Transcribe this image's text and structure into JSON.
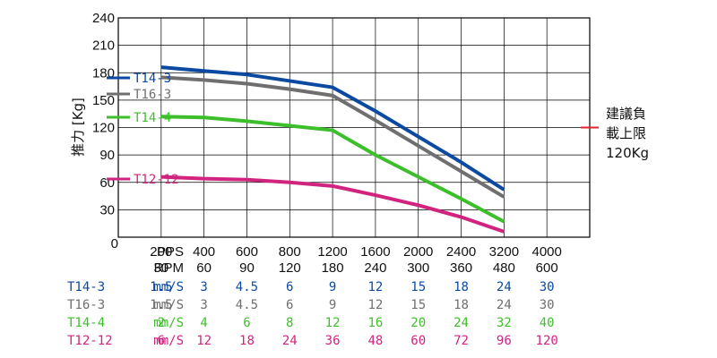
{
  "chart_data": {
    "type": "line",
    "ylabel": "推力 [Kg]",
    "yticks": [
      "240",
      "210",
      "180",
      "150",
      "120",
      "90",
      "60",
      "30",
      "0"
    ],
    "ylim": [
      0,
      240
    ],
    "x": [
      200,
      400,
      600,
      800,
      1200,
      1600,
      2000,
      2400,
      3200,
      4000
    ],
    "pps_label": "PPS",
    "rpm_label": "RPM",
    "pps": [
      "200",
      "400",
      "600",
      "800",
      "1200",
      "1600",
      "2000",
      "2400",
      "3200",
      "4000"
    ],
    "rpm": [
      "30",
      "60",
      "90",
      "120",
      "180",
      "240",
      "300",
      "360",
      "480",
      "600"
    ],
    "grid": true,
    "series": [
      {
        "name": "T14-3",
        "color": "#0b4aa0",
        "points": [
          [
            200,
            186
          ],
          [
            400,
            182
          ],
          [
            600,
            178
          ],
          [
            800,
            171
          ],
          [
            1200,
            164
          ],
          [
            1600,
            138
          ],
          [
            2000,
            110
          ],
          [
            2400,
            82
          ],
          [
            3200,
            52
          ]
        ]
      },
      {
        "name": "T16-3",
        "color": "#6f6f6f",
        "points": [
          [
            200,
            175
          ],
          [
            400,
            172
          ],
          [
            600,
            168
          ],
          [
            800,
            162
          ],
          [
            1200,
            155
          ],
          [
            1600,
            128
          ],
          [
            2000,
            100
          ],
          [
            2400,
            72
          ],
          [
            3200,
            44
          ]
        ]
      },
      {
        "name": "T14-4",
        "color": "#3cbf2a",
        "points": [
          [
            200,
            132
          ],
          [
            400,
            131
          ],
          [
            600,
            127
          ],
          [
            800,
            122
          ],
          [
            1200,
            117
          ],
          [
            1600,
            90
          ],
          [
            2000,
            66
          ],
          [
            2400,
            42
          ],
          [
            3200,
            17
          ]
        ]
      },
      {
        "name": "T12-12",
        "color": "#d0247e",
        "points": [
          [
            200,
            66
          ],
          [
            400,
            64
          ],
          [
            600,
            63
          ],
          [
            800,
            60
          ],
          [
            1200,
            56
          ],
          [
            1600,
            46
          ],
          [
            2000,
            35
          ],
          [
            2400,
            22
          ],
          [
            3200,
            6
          ]
        ]
      }
    ],
    "annotation": {
      "lines": [
        "建議負",
        "載上限",
        "120Kg"
      ],
      "value": 120,
      "color": "#e0262b"
    }
  },
  "table": {
    "unit": "mm/S",
    "rows": [
      {
        "name": "T14-3",
        "color": "#0b4aa0",
        "values": [
          "1.5",
          "3",
          "4.5",
          "6",
          "9",
          "12",
          "15",
          "18",
          "24",
          "30"
        ]
      },
      {
        "name": "T16-3",
        "color": "#6f6f6f",
        "values": [
          "1.5",
          "3",
          "4.5",
          "6",
          "9",
          "12",
          "15",
          "18",
          "24",
          "30"
        ]
      },
      {
        "name": "T14-4",
        "color": "#3cbf2a",
        "values": [
          "2",
          "4",
          "6",
          "8",
          "12",
          "16",
          "20",
          "24",
          "32",
          "40"
        ]
      },
      {
        "name": "T12-12",
        "color": "#d0247e",
        "values": [
          "6",
          "12",
          "18",
          "24",
          "36",
          "48",
          "60",
          "72",
          "96",
          "120"
        ]
      }
    ]
  }
}
